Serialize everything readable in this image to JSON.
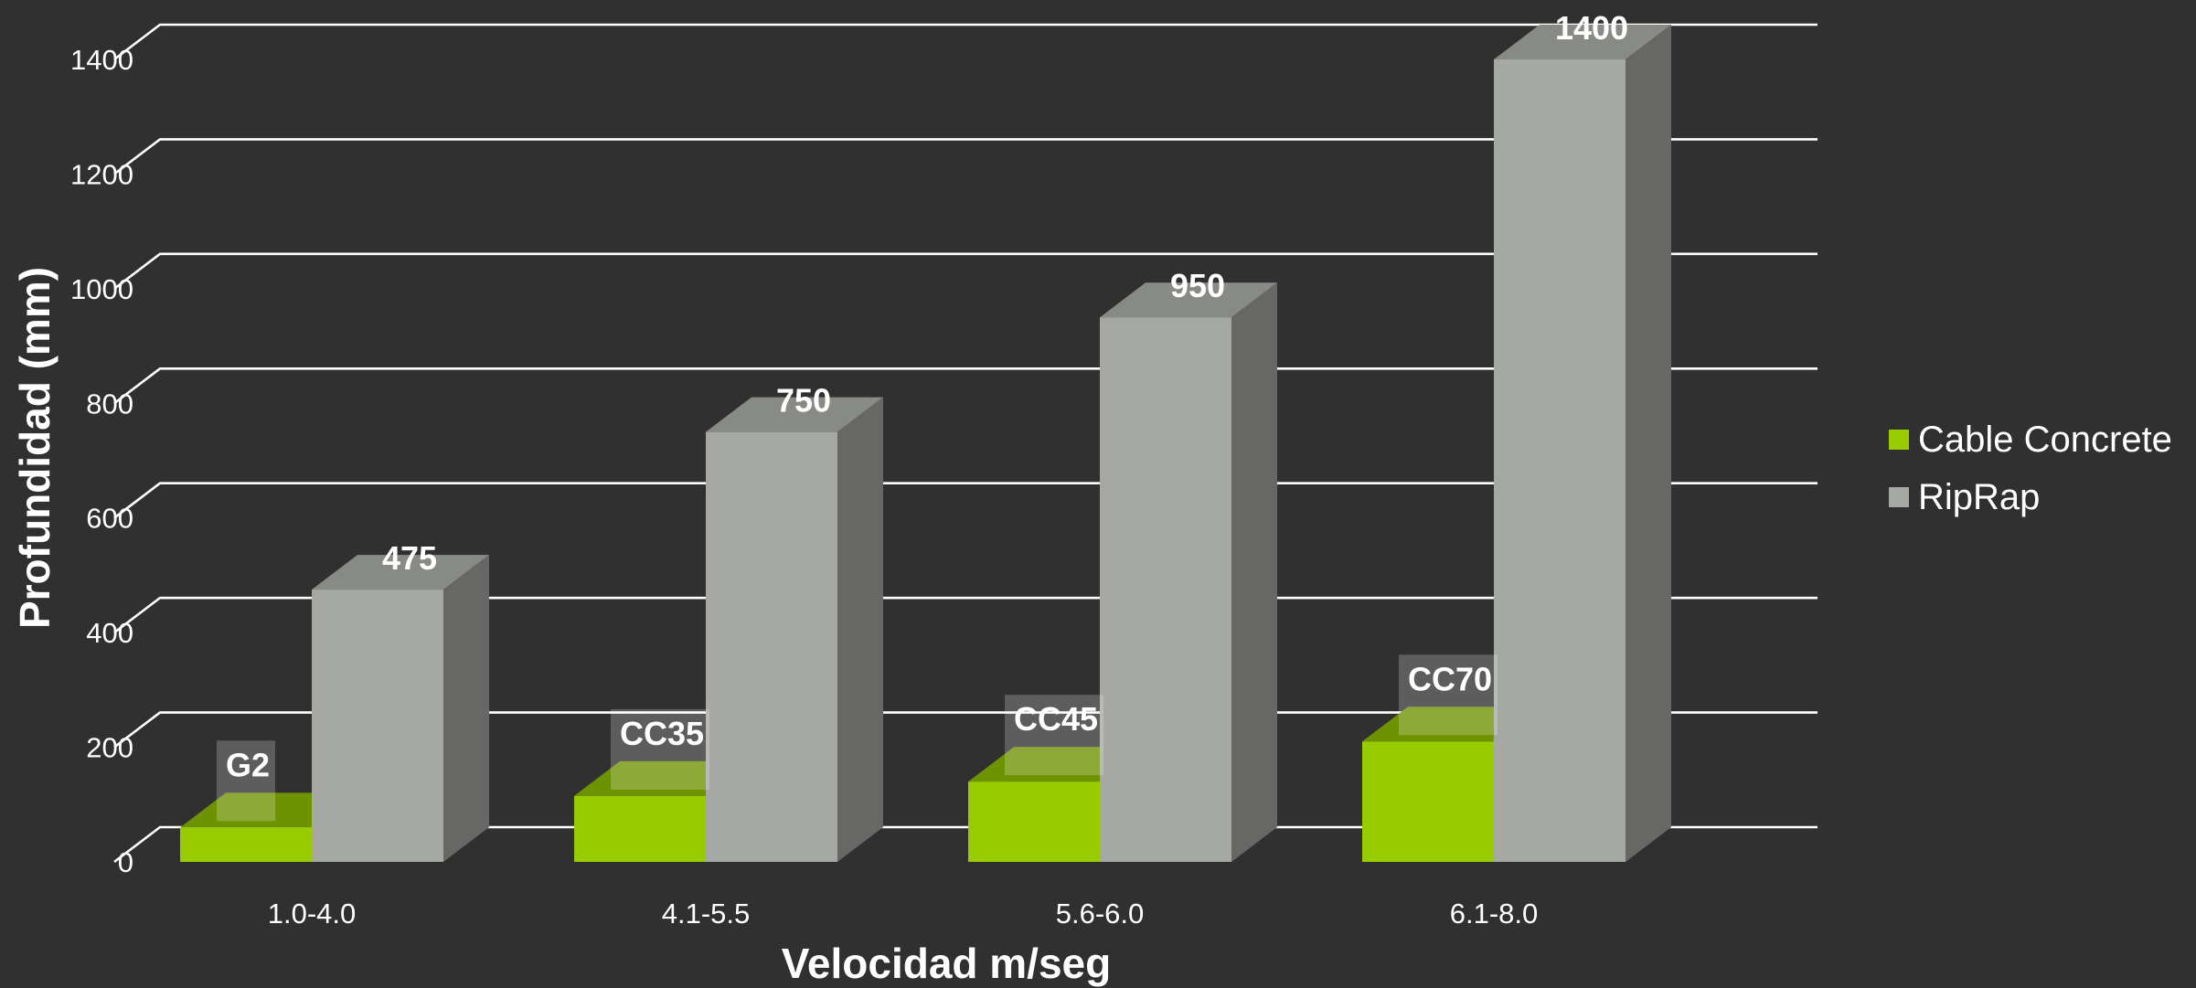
{
  "chart_data": {
    "type": "bar",
    "categories": [
      "1.0-4.0",
      "4.1-5.5",
      "5.6-6.0",
      "6.1-8.0"
    ],
    "series": [
      {
        "name": "Cable Concrete",
        "values": [
          60,
          115,
          140,
          210
        ],
        "labels": [
          "G2",
          "CC35",
          "CC45",
          "CC70"
        ],
        "color": "#99cc00"
      },
      {
        "name": "RipRap",
        "values": [
          475,
          750,
          950,
          1400
        ],
        "labels": [
          "475",
          "750",
          "950",
          "1400"
        ],
        "color": "#a6a8a4"
      }
    ],
    "xlabel": "Velocidad m/seg",
    "ylabel": "Profundidad (mm)",
    "ylim": [
      0,
      1400
    ],
    "yticks": [
      0,
      200,
      400,
      600,
      800,
      1000,
      1200,
      1400
    ],
    "grid": true,
    "legend_position": "right",
    "background": "#303030",
    "style": "3d-clustered-column"
  }
}
